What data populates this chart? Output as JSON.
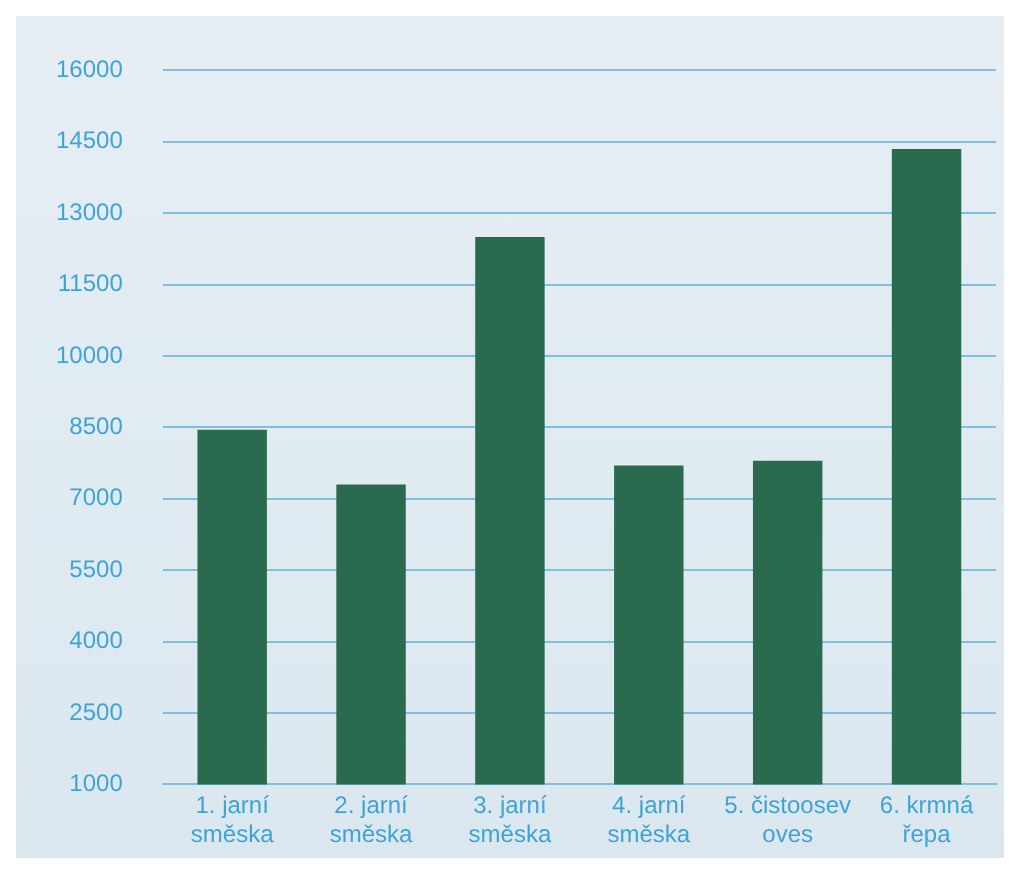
{
  "chart_data": {
    "type": "bar",
    "categories": [
      "1. jarní směska",
      "2. jarní směska",
      "3. jarní směska",
      "4. jarní směska",
      "5. čistoosev oves",
      "6. krmná řepa"
    ],
    "values": [
      8450,
      7300,
      12500,
      7700,
      7800,
      14350
    ],
    "color": "#2a6b50",
    "ylim": [
      1000,
      16000
    ],
    "yticks": [
      1000,
      2500,
      4000,
      5500,
      7000,
      8500,
      10000,
      11500,
      13000,
      14500,
      16000
    ],
    "grid": "y"
  }
}
